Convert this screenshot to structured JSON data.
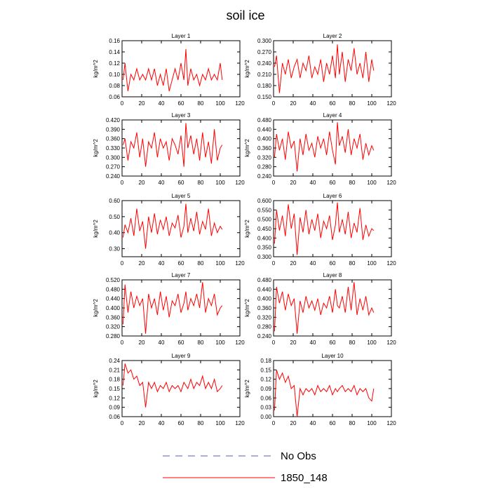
{
  "figure": {
    "title": "soil ice",
    "legend": [
      {
        "name": "No Obs",
        "color": "#5560b8",
        "style": "dashed"
      },
      {
        "name": "1850_148",
        "color": "#ff0000",
        "style": "solid"
      }
    ]
  },
  "chart_data": [
    {
      "type": "line",
      "title": "Layer 1",
      "ylabel": "kg/m^2",
      "xlim": [
        0,
        120
      ],
      "ylim": [
        0.06,
        0.16
      ],
      "xticks": [
        "0",
        "20",
        "40",
        "60",
        "80",
        "100",
        "120"
      ],
      "yticks": [
        "0.06",
        "0.08",
        "0.10",
        "0.12",
        "0.14",
        "0.16"
      ],
      "series": [
        {
          "name": "1850_148",
          "color": "#ff0000",
          "x": [
            1,
            3,
            6,
            9,
            12,
            15,
            18,
            21,
            24,
            27,
            30,
            33,
            36,
            39,
            42,
            45,
            48,
            51,
            54,
            57,
            60,
            63,
            65,
            67,
            70,
            73,
            76,
            79,
            82,
            85,
            88,
            91,
            94,
            97,
            100,
            102
          ],
          "y": [
            0.09,
            0.12,
            0.07,
            0.1,
            0.09,
            0.11,
            0.09,
            0.1,
            0.09,
            0.11,
            0.09,
            0.11,
            0.08,
            0.1,
            0.08,
            0.11,
            0.07,
            0.09,
            0.11,
            0.09,
            0.12,
            0.09,
            0.145,
            0.08,
            0.11,
            0.09,
            0.1,
            0.08,
            0.1,
            0.09,
            0.11,
            0.09,
            0.1,
            0.09,
            0.12,
            0.09
          ]
        }
      ]
    },
    {
      "type": "line",
      "title": "Layer 2",
      "ylabel": "kg/m^2",
      "xlim": [
        0,
        120
      ],
      "ylim": [
        0.15,
        0.3
      ],
      "xticks": [
        "0",
        "20",
        "40",
        "60",
        "80",
        "100",
        "120"
      ],
      "yticks": [
        "0.150",
        "0.180",
        "0.210",
        "0.240",
        "0.270",
        "0.300"
      ],
      "series": [
        {
          "name": "1850_148",
          "color": "#ff0000",
          "x": [
            1,
            3,
            6,
            9,
            12,
            15,
            18,
            21,
            24,
            27,
            30,
            33,
            36,
            39,
            42,
            45,
            48,
            51,
            54,
            57,
            60,
            63,
            65,
            67,
            70,
            73,
            76,
            79,
            82,
            85,
            88,
            91,
            94,
            97,
            100,
            102
          ],
          "y": [
            0.23,
            0.26,
            0.16,
            0.24,
            0.21,
            0.25,
            0.2,
            0.23,
            0.25,
            0.2,
            0.24,
            0.22,
            0.26,
            0.2,
            0.23,
            0.21,
            0.25,
            0.19,
            0.24,
            0.21,
            0.26,
            0.2,
            0.29,
            0.21,
            0.27,
            0.19,
            0.25,
            0.22,
            0.28,
            0.21,
            0.24,
            0.2,
            0.27,
            0.19,
            0.25,
            0.22
          ]
        }
      ]
    },
    {
      "type": "line",
      "title": "Layer 3",
      "ylabel": "kg/m^2",
      "xlim": [
        0,
        120
      ],
      "ylim": [
        0.24,
        0.42
      ],
      "xticks": [
        "0",
        "20",
        "40",
        "60",
        "80",
        "100",
        "120"
      ],
      "yticks": [
        "0.240",
        "0.270",
        "0.300",
        "0.330",
        "0.360",
        "0.390",
        "0.420"
      ],
      "series": [
        {
          "name": "1850_148",
          "color": "#ff0000",
          "x": [
            1,
            3,
            6,
            9,
            12,
            15,
            18,
            21,
            24,
            27,
            30,
            33,
            36,
            39,
            42,
            45,
            48,
            51,
            54,
            57,
            60,
            63,
            65,
            67,
            70,
            73,
            76,
            79,
            82,
            85,
            88,
            91,
            94,
            97,
            100,
            102
          ],
          "y": [
            0.34,
            0.36,
            0.29,
            0.35,
            0.33,
            0.38,
            0.3,
            0.36,
            0.27,
            0.35,
            0.33,
            0.38,
            0.3,
            0.36,
            0.33,
            0.35,
            0.29,
            0.36,
            0.34,
            0.31,
            0.37,
            0.27,
            0.41,
            0.33,
            0.37,
            0.31,
            0.36,
            0.29,
            0.38,
            0.3,
            0.35,
            0.28,
            0.39,
            0.29,
            0.33,
            0.34
          ]
        }
      ]
    },
    {
      "type": "line",
      "title": "Layer 4",
      "ylabel": "kg/m^2",
      "xlim": [
        0,
        120
      ],
      "ylim": [
        0.24,
        0.48
      ],
      "xticks": [
        "0",
        "20",
        "40",
        "60",
        "80",
        "100",
        "120"
      ],
      "yticks": [
        "0.240",
        "0.280",
        "0.320",
        "0.360",
        "0.400",
        "0.440",
        "0.480"
      ],
      "series": [
        {
          "name": "1850_148",
          "color": "#ff0000",
          "x": [
            1,
            3,
            6,
            9,
            12,
            15,
            18,
            21,
            24,
            27,
            30,
            33,
            36,
            39,
            42,
            45,
            48,
            51,
            54,
            57,
            60,
            63,
            65,
            67,
            70,
            73,
            76,
            79,
            82,
            85,
            88,
            91,
            94,
            97,
            100,
            102
          ],
          "y": [
            0.32,
            0.42,
            0.35,
            0.4,
            0.31,
            0.43,
            0.36,
            0.39,
            0.26,
            0.4,
            0.33,
            0.42,
            0.35,
            0.38,
            0.32,
            0.41,
            0.36,
            0.4,
            0.33,
            0.43,
            0.35,
            0.29,
            0.47,
            0.37,
            0.41,
            0.34,
            0.44,
            0.33,
            0.4,
            0.36,
            0.42,
            0.31,
            0.38,
            0.33,
            0.37,
            0.35
          ]
        }
      ]
    },
    {
      "type": "line",
      "title": "Layer 5",
      "ylabel": "kg/m^2",
      "xlim": [
        0,
        120
      ],
      "ylim": [
        0.25,
        0.6
      ],
      "xticks": [
        "0",
        "20",
        "40",
        "60",
        "80",
        "100",
        "120"
      ],
      "yticks": [
        "0.30",
        "0.40",
        "0.50",
        "0.60"
      ],
      "series": [
        {
          "name": "1850_148",
          "color": "#ff0000",
          "x": [
            1,
            3,
            6,
            9,
            12,
            15,
            18,
            21,
            24,
            27,
            30,
            33,
            36,
            39,
            42,
            45,
            48,
            51,
            54,
            57,
            60,
            63,
            65,
            67,
            70,
            73,
            76,
            79,
            82,
            85,
            88,
            91,
            94,
            97,
            100,
            102
          ],
          "y": [
            0.37,
            0.45,
            0.4,
            0.49,
            0.38,
            0.55,
            0.41,
            0.47,
            0.3,
            0.5,
            0.4,
            0.52,
            0.39,
            0.48,
            0.42,
            0.5,
            0.38,
            0.46,
            0.43,
            0.51,
            0.37,
            0.44,
            0.58,
            0.4,
            0.49,
            0.41,
            0.53,
            0.39,
            0.47,
            0.42,
            0.55,
            0.38,
            0.46,
            0.4,
            0.44,
            0.42
          ]
        }
      ]
    },
    {
      "type": "line",
      "title": "Layer 6",
      "ylabel": "kg/m^2",
      "xlim": [
        0,
        120
      ],
      "ylim": [
        0.3,
        0.6
      ],
      "xticks": [
        "0",
        "20",
        "40",
        "60",
        "80",
        "100",
        "120"
      ],
      "yticks": [
        "0.300",
        "0.350",
        "0.400",
        "0.450",
        "0.500",
        "0.550",
        "0.600"
      ],
      "series": [
        {
          "name": "1850_148",
          "color": "#ff0000",
          "x": [
            1,
            3,
            6,
            9,
            12,
            15,
            18,
            21,
            24,
            27,
            30,
            33,
            36,
            39,
            42,
            45,
            48,
            51,
            54,
            57,
            60,
            63,
            65,
            67,
            70,
            73,
            76,
            79,
            82,
            85,
            88,
            91,
            94,
            97,
            100,
            102
          ],
          "y": [
            0.37,
            0.55,
            0.44,
            0.52,
            0.41,
            0.58,
            0.45,
            0.53,
            0.31,
            0.51,
            0.43,
            0.55,
            0.42,
            0.5,
            0.44,
            0.53,
            0.4,
            0.49,
            0.45,
            0.52,
            0.39,
            0.47,
            0.59,
            0.43,
            0.5,
            0.42,
            0.54,
            0.4,
            0.48,
            0.43,
            0.56,
            0.39,
            0.47,
            0.41,
            0.45,
            0.44
          ]
        }
      ]
    },
    {
      "type": "line",
      "title": "Layer 7",
      "ylabel": "kg/m^2",
      "xlim": [
        0,
        120
      ],
      "ylim": [
        0.28,
        0.52
      ],
      "xticks": [
        "0",
        "20",
        "40",
        "60",
        "80",
        "100",
        "120"
      ],
      "yticks": [
        "0.280",
        "0.320",
        "0.360",
        "0.400",
        "0.440",
        "0.480",
        "0.520"
      ],
      "series": [
        {
          "name": "1850_148",
          "color": "#ff0000",
          "x": [
            1,
            3,
            6,
            9,
            12,
            15,
            18,
            21,
            24,
            27,
            30,
            33,
            36,
            39,
            42,
            45,
            48,
            51,
            54,
            57,
            60,
            63,
            65,
            67,
            70,
            73,
            76,
            79,
            82,
            85,
            88,
            91,
            94,
            97,
            100,
            102
          ],
          "y": [
            0.33,
            0.5,
            0.38,
            0.47,
            0.4,
            0.45,
            0.41,
            0.44,
            0.29,
            0.46,
            0.4,
            0.44,
            0.37,
            0.47,
            0.39,
            0.45,
            0.36,
            0.43,
            0.41,
            0.46,
            0.38,
            0.42,
            0.47,
            0.39,
            0.44,
            0.41,
            0.46,
            0.4,
            0.51,
            0.38,
            0.44,
            0.41,
            0.46,
            0.37,
            0.4,
            0.41
          ]
        }
      ]
    },
    {
      "type": "line",
      "title": "Layer 8",
      "ylabel": "kg/m^2",
      "xlim": [
        0,
        120
      ],
      "ylim": [
        0.24,
        0.48
      ],
      "xticks": [
        "0",
        "20",
        "40",
        "60",
        "80",
        "100",
        "120"
      ],
      "yticks": [
        "0.240",
        "0.280",
        "0.320",
        "0.360",
        "0.400",
        "0.440",
        "0.480"
      ],
      "series": [
        {
          "name": "1850_148",
          "color": "#ff0000",
          "x": [
            1,
            3,
            6,
            9,
            12,
            15,
            18,
            21,
            24,
            27,
            30,
            33,
            36,
            39,
            42,
            45,
            48,
            51,
            54,
            57,
            60,
            63,
            65,
            67,
            70,
            73,
            76,
            79,
            82,
            85,
            88,
            91,
            94,
            97,
            100,
            102
          ],
          "y": [
            0.26,
            0.45,
            0.38,
            0.43,
            0.35,
            0.42,
            0.37,
            0.4,
            0.25,
            0.39,
            0.34,
            0.41,
            0.36,
            0.39,
            0.35,
            0.4,
            0.33,
            0.38,
            0.36,
            0.41,
            0.34,
            0.44,
            0.37,
            0.36,
            0.41,
            0.34,
            0.45,
            0.35,
            0.47,
            0.33,
            0.4,
            0.35,
            0.41,
            0.33,
            0.36,
            0.34
          ]
        }
      ]
    },
    {
      "type": "line",
      "title": "Layer 9",
      "ylabel": "kg/m^2",
      "xlim": [
        0,
        120
      ],
      "ylim": [
        0.06,
        0.24
      ],
      "xticks": [
        "0",
        "20",
        "40",
        "60",
        "80",
        "100",
        "120"
      ],
      "yticks": [
        "0.06",
        "0.09",
        "0.12",
        "0.15",
        "0.18",
        "0.21",
        "0.24"
      ],
      "series": [
        {
          "name": "1850_148",
          "color": "#ff0000",
          "x": [
            1,
            3,
            6,
            9,
            12,
            15,
            18,
            21,
            24,
            27,
            30,
            33,
            36,
            39,
            42,
            45,
            48,
            51,
            54,
            57,
            60,
            63,
            65,
            67,
            70,
            73,
            76,
            79,
            82,
            85,
            88,
            91,
            94,
            97,
            100,
            102
          ],
          "y": [
            0.16,
            0.23,
            0.2,
            0.21,
            0.18,
            0.19,
            0.16,
            0.17,
            0.09,
            0.17,
            0.15,
            0.17,
            0.14,
            0.16,
            0.15,
            0.17,
            0.14,
            0.16,
            0.15,
            0.16,
            0.14,
            0.17,
            0.16,
            0.15,
            0.18,
            0.15,
            0.17,
            0.16,
            0.19,
            0.15,
            0.17,
            0.15,
            0.18,
            0.14,
            0.15,
            0.16
          ]
        }
      ]
    },
    {
      "type": "line",
      "title": "Layer 10",
      "ylabel": "kg/m^2",
      "xlim": [
        0,
        120
      ],
      "ylim": [
        0.0,
        0.18
      ],
      "xticks": [
        "0",
        "20",
        "40",
        "60",
        "80",
        "100",
        "120"
      ],
      "yticks": [
        "0.00",
        "0.03",
        "0.06",
        "0.09",
        "0.12",
        "0.15",
        "0.18"
      ],
      "series": [
        {
          "name": "1850_148",
          "color": "#ff0000",
          "x": [
            1,
            3,
            6,
            9,
            12,
            15,
            18,
            21,
            24,
            27,
            30,
            33,
            36,
            39,
            42,
            45,
            48,
            51,
            54,
            57,
            60,
            63,
            65,
            67,
            70,
            73,
            76,
            79,
            82,
            85,
            88,
            91,
            94,
            97,
            100,
            102
          ],
          "y": [
            0.02,
            0.15,
            0.12,
            0.14,
            0.11,
            0.13,
            0.09,
            0.1,
            0.0,
            0.09,
            0.07,
            0.09,
            0.08,
            0.09,
            0.07,
            0.1,
            0.08,
            0.09,
            0.08,
            0.1,
            0.07,
            0.09,
            0.08,
            0.09,
            0.1,
            0.08,
            0.09,
            0.08,
            0.1,
            0.07,
            0.09,
            0.08,
            0.09,
            0.06,
            0.05,
            0.09
          ]
        }
      ]
    }
  ]
}
